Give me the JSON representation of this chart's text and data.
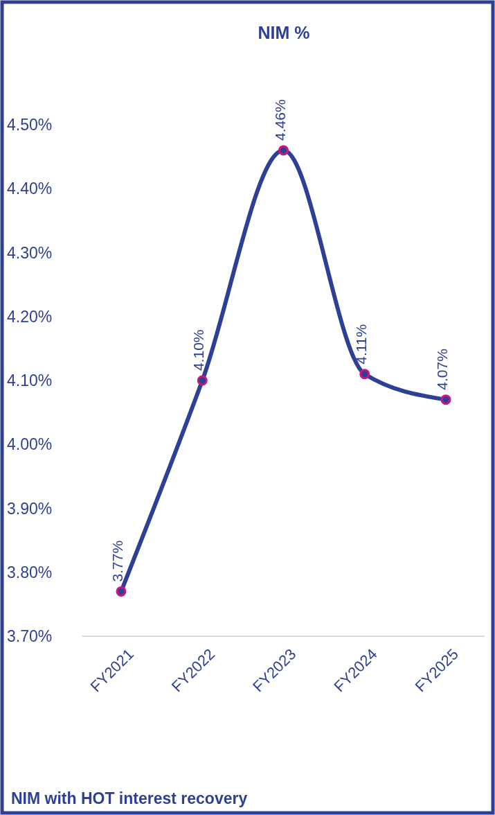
{
  "chart_data": {
    "type": "line",
    "title": "NIM %",
    "categories": [
      "FY2021",
      "FY2022",
      "FY2023",
      "FY2024",
      "FY2025"
    ],
    "series": [
      {
        "color": "#2e3f96",
        "values": [
          3.77,
          4.1,
          4.46,
          4.11,
          4.07
        ],
        "value_labels": [
          "3.77%",
          "4.10%",
          "4.46%",
          "4.11%",
          "4.07%"
        ]
      }
    ],
    "ylim": [
      3.7,
      4.5
    ],
    "yticks": [
      {
        "value": 3.7,
        "label": "3.70%"
      },
      {
        "value": 3.8,
        "label": "3.80%"
      },
      {
        "value": 3.9,
        "label": "3.90%"
      },
      {
        "value": 4.0,
        "label": "4.00%"
      },
      {
        "value": 4.1,
        "label": "4.10%"
      },
      {
        "value": 4.2,
        "label": "4.20%"
      },
      {
        "value": 4.3,
        "label": "4.30%"
      },
      {
        "value": 4.4,
        "label": "4.40%"
      },
      {
        "value": 4.5,
        "label": "4.50%"
      }
    ],
    "marker": "circle",
    "grid": false,
    "annotations": [
      "NIM with HOT interest recovery"
    ]
  }
}
